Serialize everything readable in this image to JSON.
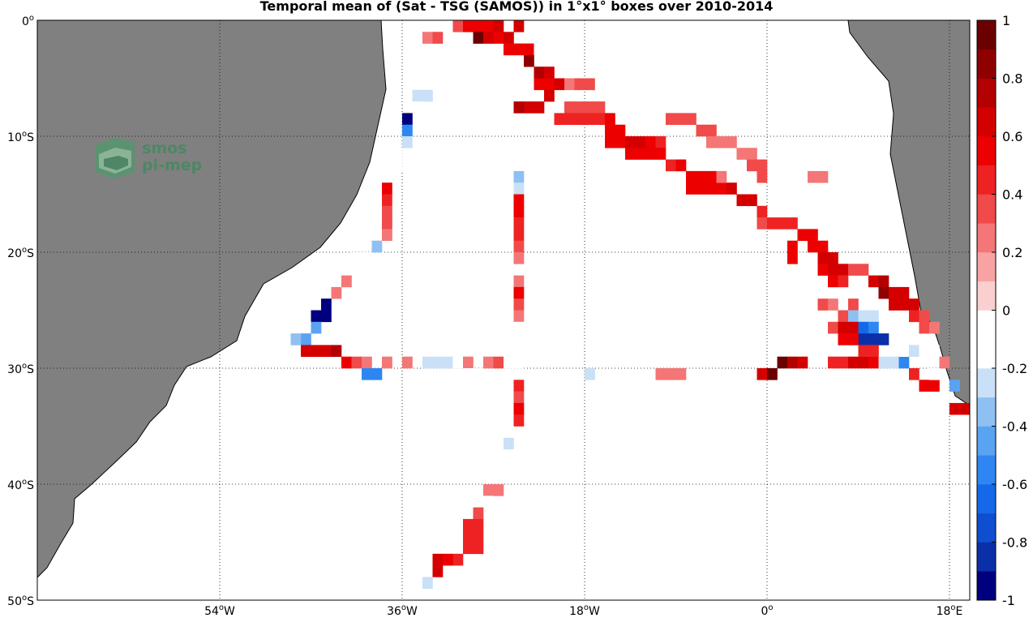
{
  "title": "Temporal mean of (Sat - TSG (SAMOS)) in 1°x1° boxes over 2010-2014",
  "logo": {
    "line1": "smos",
    "line2": "pi-mep"
  },
  "axes": {
    "lon_min": -72,
    "lon_max": 20,
    "lat_min": -50,
    "lat_max": 0,
    "lat_ticks": [
      {
        "value": 0,
        "label": "0o"
      },
      {
        "value": -10,
        "label": "10oS"
      },
      {
        "value": -20,
        "label": "20oS"
      },
      {
        "value": -30,
        "label": "30oS"
      },
      {
        "value": -40,
        "label": "40oS"
      },
      {
        "value": -50,
        "label": "50oS"
      }
    ],
    "lon_ticks": [
      {
        "value": -54,
        "label": "54oW"
      },
      {
        "value": -36,
        "label": "36oW"
      },
      {
        "value": -18,
        "label": "18oW"
      },
      {
        "value": 0,
        "label": "0o"
      },
      {
        "value": 18,
        "label": "18oE"
      }
    ]
  },
  "colorbar": {
    "min": -1,
    "max": 1,
    "tick_labels": [
      "1",
      "0.8",
      "0.6",
      "0.4",
      "0.2",
      "0",
      "-0.2",
      "-0.4",
      "-0.6",
      "-0.8",
      "-1"
    ],
    "colors": [
      "#00007f",
      "#0a2fa8",
      "#0f4fcf",
      "#1569e8",
      "#2e86f2",
      "#5aa2f2",
      "#8ec0f2",
      "#c9e0f7",
      "#ffffff",
      "#ffffff",
      "#fbcfcf",
      "#f7a3a3",
      "#f47676",
      "#f04a4a",
      "#ee2222",
      "#ed0000",
      "#d40000",
      "#b30000",
      "#8f0000",
      "#6b0000"
    ]
  },
  "colors": {
    "land": "#808080",
    "coast": "#000000",
    "logo": "#3d8a5c"
  },
  "chart_data": {
    "type": "heatmap",
    "title": "Temporal mean of (Sat - TSG (SAMOS)) in 1°x1° boxes over 2010-2014",
    "cell_size_deg": 1,
    "xlim": [
      -72,
      20
    ],
    "ylim": [
      -50,
      0
    ],
    "value_range": [
      -1,
      1
    ],
    "cells": [
      [
        -35,
        0,
        -0.1
      ],
      [
        -34,
        -1,
        0.2
      ],
      [
        -33,
        -1,
        0.3
      ],
      [
        -31,
        0,
        0.3
      ],
      [
        -30,
        0,
        0.5
      ],
      [
        -29,
        0,
        0.5
      ],
      [
        -28,
        0,
        0.5
      ],
      [
        -27,
        0,
        0.6
      ],
      [
        -29,
        -1,
        0.9
      ],
      [
        -28,
        -1,
        0.6
      ],
      [
        -27,
        -1,
        0.5
      ],
      [
        -26,
        -1,
        0.6
      ],
      [
        -25,
        0,
        0.6
      ],
      [
        -26,
        -2,
        0.5
      ],
      [
        -25,
        -2,
        0.5
      ],
      [
        -24,
        -2,
        0.5
      ],
      [
        -23,
        -2,
        -0.1
      ],
      [
        -24,
        -3,
        0.8
      ],
      [
        -23,
        -4,
        0.7
      ],
      [
        -22,
        -4,
        0.6
      ],
      [
        -23,
        -5,
        0.5
      ],
      [
        -22,
        -5,
        0.5
      ],
      [
        -21,
        -5,
        0.6
      ],
      [
        -20,
        -5,
        0.2
      ],
      [
        -19,
        -5,
        0.3
      ],
      [
        -18,
        -5,
        0.3
      ],
      [
        -22,
        -6,
        0.6
      ],
      [
        -23,
        -7,
        0.6
      ],
      [
        -24,
        -7,
        0.6
      ],
      [
        -25,
        -7,
        0.7
      ],
      [
        -20,
        -7,
        0.3
      ],
      [
        -19,
        -7,
        0.3
      ],
      [
        -18,
        -7,
        0.3
      ],
      [
        -17,
        -7,
        0.3
      ],
      [
        -21,
        -8,
        0.4
      ],
      [
        -20,
        -8,
        0.4
      ],
      [
        -19,
        -8,
        0.4
      ],
      [
        -18,
        -8,
        0.4
      ],
      [
        -17,
        -8,
        0.4
      ],
      [
        -16,
        -8,
        0.5
      ],
      [
        -16,
        -9,
        0.5
      ],
      [
        -15,
        -9,
        0.5
      ],
      [
        -16,
        -10,
        0.5
      ],
      [
        -15,
        -10,
        0.5
      ],
      [
        -14,
        -10,
        0.6
      ],
      [
        -13,
        -10,
        0.6
      ],
      [
        -12,
        -10,
        0.5
      ],
      [
        -11,
        -10,
        0.4
      ],
      [
        -14,
        -11,
        0.5
      ],
      [
        -13,
        -11,
        0.5
      ],
      [
        -12,
        -11,
        0.5
      ],
      [
        -11,
        -11,
        0.5
      ],
      [
        -10,
        -12,
        0.4
      ],
      [
        -9,
        -12,
        0.5
      ],
      [
        -8,
        -13,
        0.5
      ],
      [
        -7,
        -13,
        0.5
      ],
      [
        -6,
        -13,
        0.5
      ],
      [
        -8,
        -14,
        0.5
      ],
      [
        -7,
        -14,
        0.5
      ],
      [
        -6,
        -14,
        0.5
      ],
      [
        -5,
        -14,
        0.5
      ],
      [
        -4,
        -14,
        0.6
      ],
      [
        -3,
        -15,
        0.6
      ],
      [
        -2,
        -15,
        0.6
      ],
      [
        -1,
        -16,
        0.4
      ],
      [
        -1,
        -17,
        0.3
      ],
      [
        0,
        -17,
        0.4
      ],
      [
        1,
        -17,
        0.4
      ],
      [
        2,
        -17,
        0.4
      ],
      [
        3,
        -18,
        0.5
      ],
      [
        4,
        -18,
        0.5
      ],
      [
        4,
        -19,
        0.5
      ],
      [
        5,
        -19,
        0.5
      ],
      [
        5,
        -20,
        0.6
      ],
      [
        6,
        -20,
        0.6
      ],
      [
        6,
        -21,
        0.6
      ],
      [
        7,
        -21,
        0.6
      ],
      [
        8,
        -21,
        0.3
      ],
      [
        9,
        -21,
        0.3
      ],
      [
        10,
        -22,
        0.6
      ],
      [
        11,
        -22,
        0.7
      ],
      [
        11,
        -23,
        0.8
      ],
      [
        12,
        -23,
        0.6
      ],
      [
        13,
        -23,
        0.6
      ],
      [
        12,
        -24,
        0.6
      ],
      [
        13,
        -24,
        0.6
      ],
      [
        14,
        -24,
        0.6
      ],
      [
        14,
        -25,
        0.4
      ],
      [
        15,
        -25,
        0.3
      ],
      [
        15,
        -26,
        0.3
      ],
      [
        16,
        -26,
        0.2
      ],
      [
        -11,
        -6,
        -0.2
      ],
      [
        -10,
        -6,
        -0.2
      ],
      [
        -11,
        -7,
        -0.1
      ],
      [
        -10,
        -7,
        -0.1
      ],
      [
        -10,
        -8,
        0.3
      ],
      [
        -9,
        -8,
        0.3
      ],
      [
        -8,
        -8,
        0.3
      ],
      [
        -7,
        -9,
        0.3
      ],
      [
        -6,
        -9,
        0.3
      ],
      [
        -6,
        -10,
        0.2
      ],
      [
        -5,
        -10,
        0.2
      ],
      [
        -4,
        -10,
        0.2
      ],
      [
        -3,
        -11,
        0.2
      ],
      [
        -2,
        -11,
        0.2
      ],
      [
        -2,
        -12,
        0.3
      ],
      [
        -1,
        -12,
        0.3
      ],
      [
        -1,
        -13,
        0.3
      ],
      [
        -5,
        -13,
        0.2
      ],
      [
        4,
        -13,
        0.2
      ],
      [
        5,
        -13,
        0.2
      ],
      [
        -35,
        -6,
        -0.3
      ],
      [
        -34,
        -6,
        -0.3
      ],
      [
        -35,
        -7,
        -0.2
      ],
      [
        -36,
        -8,
        -0.9
      ],
      [
        -36,
        -9,
        -0.6
      ],
      [
        -36,
        -10,
        -0.3
      ],
      [
        -37,
        -11,
        -0.1
      ],
      [
        -37,
        -12,
        -0.1
      ],
      [
        -38,
        -13,
        -0.1
      ],
      [
        -38,
        -14,
        0.5
      ],
      [
        -38,
        -15,
        0.4
      ],
      [
        -38,
        -16,
        0.3
      ],
      [
        -38,
        -17,
        0.3
      ],
      [
        -38,
        -18,
        0.2
      ],
      [
        -39,
        -19,
        -0.4
      ],
      [
        -40,
        -20,
        -0.2
      ],
      [
        -41,
        -20,
        -0.1
      ],
      [
        -41,
        -21,
        -0.1
      ],
      [
        -42,
        -22,
        0.2
      ],
      [
        -43,
        -23,
        0.2
      ],
      [
        -44,
        -24,
        -0.9
      ],
      [
        -45,
        -25,
        -0.9
      ],
      [
        -44,
        -25,
        -0.9
      ],
      [
        -45,
        -26,
        -0.5
      ],
      [
        -46,
        -27,
        -0.5
      ],
      [
        -47,
        -27,
        -0.4
      ],
      [
        -46,
        -28,
        0.6
      ],
      [
        -45,
        -28,
        0.6
      ],
      [
        -44,
        -28,
        0.6
      ],
      [
        -43,
        -28,
        0.7
      ],
      [
        -42,
        -29,
        0.5
      ],
      [
        -41,
        -29,
        0.3
      ],
      [
        -40,
        -29,
        0.2
      ],
      [
        -40,
        -30,
        -0.6
      ],
      [
        -39,
        -30,
        -0.6
      ],
      [
        -38,
        -29,
        0.2
      ],
      [
        -36,
        -29,
        0.2
      ],
      [
        -34,
        -29,
        -0.3
      ],
      [
        -33,
        -29,
        -0.3
      ],
      [
        -32,
        -29,
        -0.3
      ],
      [
        -31,
        -29,
        -0.2
      ],
      [
        -30,
        -29,
        0.2
      ],
      [
        -30,
        -30,
        -0.1
      ],
      [
        -29,
        -30,
        -0.1
      ],
      [
        -28,
        -29,
        0.2
      ],
      [
        -27,
        -29,
        0.3
      ],
      [
        -26,
        -29,
        -0.1
      ],
      [
        -25,
        -29,
        -0.1
      ],
      [
        -18,
        -30,
        -0.3
      ],
      [
        -11,
        -30,
        0.2
      ],
      [
        -10,
        -30,
        0.2
      ],
      [
        -9,
        -30,
        0.2
      ],
      [
        -1,
        -30,
        0.6
      ],
      [
        0,
        -30,
        0.9
      ],
      [
        1,
        -29,
        0.9
      ],
      [
        2,
        -29,
        0.7
      ],
      [
        3,
        -29,
        0.6
      ],
      [
        6,
        -29,
        0.4
      ],
      [
        7,
        -29,
        0.4
      ],
      [
        8,
        -29,
        0.6
      ],
      [
        9,
        -29,
        0.6
      ],
      [
        10,
        -29,
        0.5
      ],
      [
        11,
        -29,
        -0.3
      ],
      [
        12,
        -29,
        -0.3
      ],
      [
        13,
        -29,
        -0.6
      ],
      [
        2,
        -19,
        0.5
      ],
      [
        2,
        -20,
        0.5
      ],
      [
        5,
        -21,
        0.5
      ],
      [
        6,
        -22,
        0.5
      ],
      [
        7,
        -22,
        0.4
      ],
      [
        5,
        -24,
        0.3
      ],
      [
        6,
        -24,
        0.2
      ],
      [
        8,
        -24,
        0.3
      ],
      [
        7,
        -25,
        0.3
      ],
      [
        8,
        -25,
        -0.4
      ],
      [
        9,
        -25,
        -0.3
      ],
      [
        10,
        -25,
        -0.3
      ],
      [
        6,
        -26,
        0.3
      ],
      [
        7,
        -26,
        0.6
      ],
      [
        8,
        -26,
        0.6
      ],
      [
        9,
        -26,
        -0.7
      ],
      [
        10,
        -26,
        -0.6
      ],
      [
        9,
        -27,
        -0.8
      ],
      [
        10,
        -27,
        -0.8
      ],
      [
        11,
        -27,
        -0.8
      ],
      [
        8,
        -27,
        0.5
      ],
      [
        7,
        -27,
        0.5
      ],
      [
        9,
        -28,
        0.4
      ],
      [
        10,
        -28,
        0.4
      ],
      [
        13,
        -28,
        -0.2
      ],
      [
        14,
        -28,
        -0.3
      ],
      [
        15,
        -28,
        -0.2
      ],
      [
        16,
        -28,
        -0.1
      ],
      [
        17,
        -29,
        0.2
      ],
      [
        14,
        -30,
        0.4
      ],
      [
        15,
        -31,
        0.5
      ],
      [
        16,
        -31,
        0.5
      ],
      [
        16,
        -30,
        -0.1
      ],
      [
        18,
        -31,
        -0.5
      ],
      [
        17,
        -32,
        -0.1
      ],
      [
        18,
        -33,
        0.6
      ],
      [
        19,
        -33,
        0.6
      ],
      [
        -25,
        -13,
        -0.4
      ],
      [
        -25,
        -14,
        -0.3
      ],
      [
        -25,
        -15,
        0.5
      ],
      [
        -25,
        -16,
        0.5
      ],
      [
        -25,
        -17,
        0.4
      ],
      [
        -25,
        -18,
        0.4
      ],
      [
        -25,
        -19,
        0.3
      ],
      [
        -25,
        -20,
        0.2
      ],
      [
        -25,
        -22,
        0.2
      ],
      [
        -25,
        -23,
        0.5
      ],
      [
        -25,
        -24,
        0.3
      ],
      [
        -25,
        -25,
        0.2
      ],
      [
        -25,
        -26,
        -0.1
      ],
      [
        -25,
        -27,
        -0.2
      ],
      [
        -25,
        -28,
        -0.2
      ],
      [
        -25,
        -31,
        0.4
      ],
      [
        -25,
        -32,
        0.3
      ],
      [
        -25,
        -33,
        0.5
      ],
      [
        -25,
        -34,
        0.4
      ],
      [
        -26,
        -35,
        -0.2
      ],
      [
        -26,
        -36,
        -0.3
      ],
      [
        -26,
        -37,
        -0.2
      ],
      [
        -27,
        -38,
        -0.1
      ],
      [
        -28,
        -40,
        0.2
      ],
      [
        -27,
        -40,
        0.2
      ],
      [
        -28,
        -41,
        -0.1
      ],
      [
        -29,
        -42,
        0.3
      ],
      [
        -30,
        -43,
        0.4
      ],
      [
        -29,
        -43,
        0.4
      ],
      [
        -30,
        -44,
        0.4
      ],
      [
        -29,
        -44,
        0.4
      ],
      [
        -30,
        -45,
        0.4
      ],
      [
        -29,
        -45,
        0.4
      ],
      [
        -31,
        -46,
        0.4
      ],
      [
        -32,
        -46,
        0.5
      ],
      [
        -33,
        -46,
        0.6
      ],
      [
        -33,
        -47,
        0.6
      ],
      [
        -34,
        -48,
        -0.3
      ]
    ]
  }
}
